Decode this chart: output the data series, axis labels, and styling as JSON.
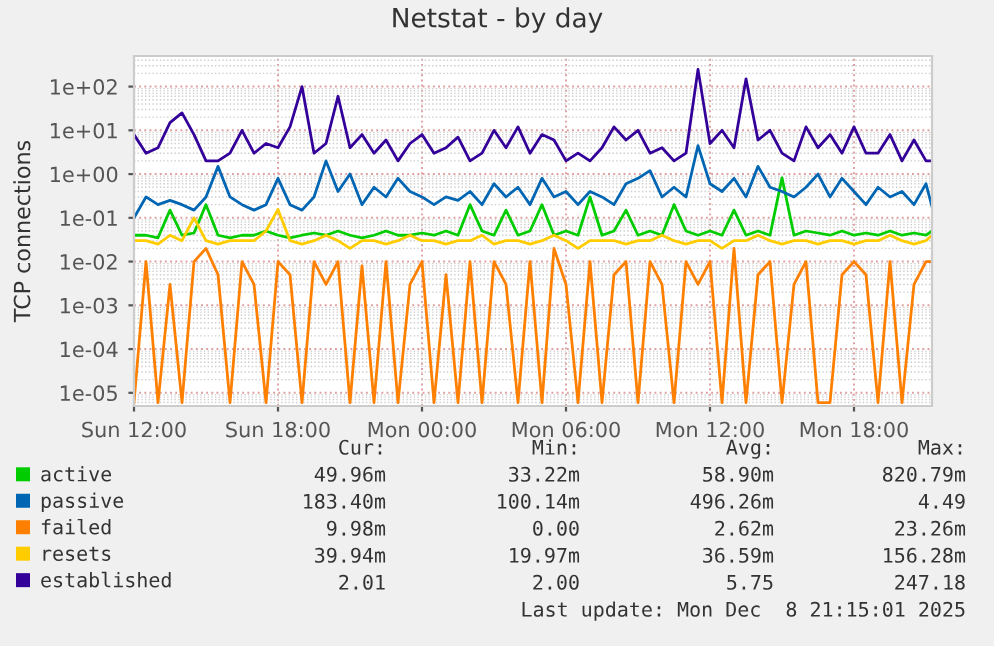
{
  "chart_data": {
    "type": "line",
    "title": "Netstat - by day",
    "ylabel": "TCP connections",
    "log": "y",
    "grid": true,
    "legend": "bottom",
    "marker": "none",
    "line_style": "solid",
    "xlim": [
      "2025-12-07T12:00",
      "2025-12-08T21:15"
    ],
    "xticks": [
      {
        "value": "2025-12-07T12:00",
        "label": "Sun 12:00"
      },
      {
        "value": "2025-12-07T18:00",
        "label": "Sun 18:00"
      },
      {
        "value": "2025-12-08T00:00",
        "label": "Mon 00:00"
      },
      {
        "value": "2025-12-08T06:00",
        "label": "Mon 06:00"
      },
      {
        "value": "2025-12-08T12:00",
        "label": "Mon 12:00"
      },
      {
        "value": "2025-12-08T18:00",
        "label": "Mon 18:00"
      }
    ],
    "ylim": [
      5e-06,
      500
    ],
    "yticks": [
      {
        "value": 1e-05,
        "label": "1e-05"
      },
      {
        "value": 0.0001,
        "label": "1e-04"
      },
      {
        "value": 0.001,
        "label": "1e-03"
      },
      {
        "value": 0.01,
        "label": "1e-02"
      },
      {
        "value": 0.1,
        "label": "1e-01"
      },
      {
        "value": 1,
        "label": "1e+00"
      },
      {
        "value": 10,
        "label": "1e+01"
      },
      {
        "value": 100,
        "label": "1e+02"
      }
    ],
    "x": [
      "2025-12-07T12:00",
      "2025-12-07T12:30",
      "2025-12-07T13:00",
      "2025-12-07T13:30",
      "2025-12-07T14:00",
      "2025-12-07T14:30",
      "2025-12-07T15:00",
      "2025-12-07T15:30",
      "2025-12-07T16:00",
      "2025-12-07T16:30",
      "2025-12-07T17:00",
      "2025-12-07T17:30",
      "2025-12-07T18:00",
      "2025-12-07T18:30",
      "2025-12-07T19:00",
      "2025-12-07T19:30",
      "2025-12-07T20:00",
      "2025-12-07T20:30",
      "2025-12-07T21:00",
      "2025-12-07T21:30",
      "2025-12-07T22:00",
      "2025-12-07T22:30",
      "2025-12-07T23:00",
      "2025-12-07T23:30",
      "2025-12-08T00:00",
      "2025-12-08T00:30",
      "2025-12-08T01:00",
      "2025-12-08T01:30",
      "2025-12-08T02:00",
      "2025-12-08T02:30",
      "2025-12-08T03:00",
      "2025-12-08T03:30",
      "2025-12-08T04:00",
      "2025-12-08T04:30",
      "2025-12-08T05:00",
      "2025-12-08T05:30",
      "2025-12-08T06:00",
      "2025-12-08T06:30",
      "2025-12-08T07:00",
      "2025-12-08T07:30",
      "2025-12-08T08:00",
      "2025-12-08T08:30",
      "2025-12-08T09:00",
      "2025-12-08T09:30",
      "2025-12-08T10:00",
      "2025-12-08T10:30",
      "2025-12-08T11:00",
      "2025-12-08T11:30",
      "2025-12-08T12:00",
      "2025-12-08T12:30",
      "2025-12-08T13:00",
      "2025-12-08T13:30",
      "2025-12-08T14:00",
      "2025-12-08T14:30",
      "2025-12-08T15:00",
      "2025-12-08T15:30",
      "2025-12-08T16:00",
      "2025-12-08T16:30",
      "2025-12-08T17:00",
      "2025-12-08T17:30",
      "2025-12-08T18:00",
      "2025-12-08T18:30",
      "2025-12-08T19:00",
      "2025-12-08T19:30",
      "2025-12-08T20:00",
      "2025-12-08T20:30",
      "2025-12-08T21:00",
      "2025-12-08T21:15"
    ],
    "series": [
      {
        "name": "active",
        "color": "#00cc00",
        "values": [
          0.04,
          0.04,
          0.035,
          0.15,
          0.04,
          0.045,
          0.2,
          0.04,
          0.035,
          0.04,
          0.04,
          0.05,
          0.04,
          0.035,
          0.04,
          0.045,
          0.04,
          0.05,
          0.04,
          0.035,
          0.04,
          0.05,
          0.04,
          0.04,
          0.045,
          0.04,
          0.05,
          0.04,
          0.2,
          0.05,
          0.04,
          0.15,
          0.04,
          0.05,
          0.2,
          0.04,
          0.05,
          0.04,
          0.3,
          0.04,
          0.05,
          0.15,
          0.04,
          0.05,
          0.04,
          0.2,
          0.05,
          0.04,
          0.05,
          0.04,
          0.15,
          0.04,
          0.05,
          0.04,
          0.82,
          0.04,
          0.05,
          0.045,
          0.04,
          0.05,
          0.04,
          0.045,
          0.04,
          0.05,
          0.04,
          0.045,
          0.04,
          0.05
        ]
      },
      {
        "name": "passive",
        "color": "#0066b3",
        "values": [
          0.1,
          0.3,
          0.2,
          0.25,
          0.2,
          0.15,
          0.3,
          1.5,
          0.3,
          0.2,
          0.15,
          0.2,
          0.8,
          0.2,
          0.15,
          0.3,
          2,
          0.4,
          1,
          0.2,
          0.5,
          0.3,
          0.8,
          0.4,
          0.3,
          0.2,
          0.3,
          0.25,
          0.4,
          0.2,
          0.6,
          0.3,
          0.5,
          0.2,
          0.8,
          0.3,
          0.4,
          0.2,
          0.4,
          0.3,
          0.2,
          0.6,
          0.8,
          1.2,
          0.3,
          0.5,
          0.3,
          4.49,
          0.6,
          0.4,
          0.8,
          0.3,
          1.5,
          0.5,
          0.4,
          0.3,
          0.5,
          1,
          0.3,
          0.8,
          0.4,
          0.2,
          0.5,
          0.3,
          0.4,
          0.2,
          0.6,
          0.18
        ]
      },
      {
        "name": "failed",
        "color": "#ff8000",
        "values": [
          6e-06,
          0.01,
          6e-06,
          0.003,
          6e-06,
          0.01,
          0.02,
          0.005,
          6e-06,
          0.01,
          0.003,
          6e-06,
          0.01,
          0.005,
          6e-06,
          0.01,
          0.003,
          0.01,
          6e-06,
          0.008,
          6e-06,
          0.01,
          6e-06,
          0.003,
          0.01,
          6e-06,
          0.005,
          6e-06,
          0.01,
          6e-06,
          0.01,
          0.003,
          6e-06,
          0.01,
          6e-06,
          0.02,
          0.003,
          6e-06,
          0.01,
          6e-06,
          0.005,
          0.01,
          6e-06,
          0.01,
          0.003,
          6e-06,
          0.01,
          0.003,
          0.01,
          6e-06,
          0.02,
          6e-06,
          0.005,
          0.01,
          6e-06,
          0.003,
          0.01,
          6e-06,
          6e-06,
          0.005,
          0.01,
          0.005,
          6e-06,
          0.01,
          6e-06,
          0.003,
          0.01,
          0.01
        ]
      },
      {
        "name": "resets",
        "color": "#ffcc00",
        "values": [
          0.03,
          0.03,
          0.025,
          0.04,
          0.03,
          0.1,
          0.03,
          0.025,
          0.03,
          0.03,
          0.03,
          0.05,
          0.156,
          0.03,
          0.025,
          0.03,
          0.04,
          0.03,
          0.02,
          0.03,
          0.03,
          0.025,
          0.03,
          0.04,
          0.03,
          0.03,
          0.025,
          0.03,
          0.03,
          0.04,
          0.025,
          0.03,
          0.03,
          0.025,
          0.03,
          0.04,
          0.03,
          0.02,
          0.03,
          0.03,
          0.03,
          0.025,
          0.03,
          0.03,
          0.04,
          0.03,
          0.025,
          0.03,
          0.03,
          0.02,
          0.03,
          0.03,
          0.04,
          0.03,
          0.025,
          0.03,
          0.03,
          0.025,
          0.03,
          0.03,
          0.025,
          0.03,
          0.03,
          0.04,
          0.03,
          0.025,
          0.03,
          0.04
        ]
      },
      {
        "name": "established",
        "color": "#330099",
        "values": [
          8,
          3,
          4,
          15,
          25,
          8,
          2,
          2,
          3,
          10,
          3,
          5,
          4,
          12,
          100,
          3,
          5,
          60,
          4,
          8,
          3,
          6,
          2,
          5,
          8,
          3,
          4,
          7,
          2,
          3,
          10,
          4,
          12,
          3,
          8,
          6,
          2,
          3,
          2,
          4,
          12,
          6,
          10,
          3,
          4,
          2,
          3,
          247,
          5,
          10,
          4,
          150,
          6,
          10,
          3,
          2,
          12,
          4,
          8,
          3,
          12,
          3,
          3,
          8,
          2,
          6,
          2,
          2.01
        ]
      }
    ],
    "annotations": [
      "Cur:",
      "Min:",
      "Avg:",
      "Max:",
      "49.96m",
      "33.22m",
      "58.90m",
      "820.79m",
      "183.40m",
      "100.14m",
      "496.26m",
      "4.49",
      "9.98m",
      "0.00",
      "2.62m",
      "23.26m",
      "39.94m",
      "19.97m",
      "36.59m",
      "156.28m",
      "2.01",
      "2.00",
      "5.75",
      "247.18",
      "Last update: Mon Dec  8 21:15:01 2025"
    ]
  }
}
